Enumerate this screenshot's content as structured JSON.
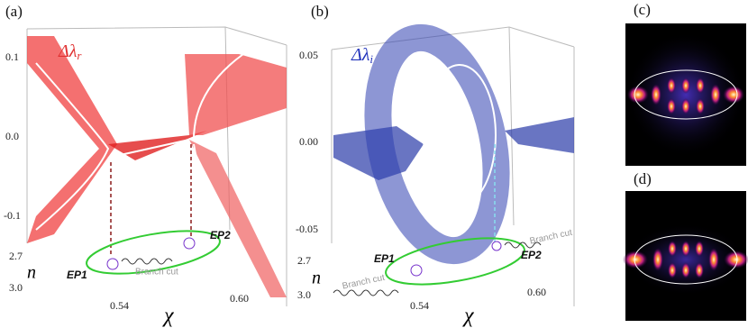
{
  "panels": [
    {
      "label": "(a)",
      "quantity": {
        "main": "Δλ",
        "sub": "r"
      },
      "yticks": [
        "0.1",
        "0.0",
        "-0.1"
      ],
      "n_label": "n",
      "n_ticks": [
        "2.7",
        "3.0"
      ],
      "chi_label": "χ",
      "chi_ticks": [
        "0.54",
        "0.60"
      ],
      "ep1": "EP1",
      "ep2": "EP2",
      "branch_cuts": [
        "Branch cut"
      ]
    },
    {
      "label": "(b)",
      "quantity": {
        "main": "Δλ",
        "sub": "i"
      },
      "yticks": [
        "0.05",
        "0.00",
        "-0.05"
      ],
      "n_label": "n",
      "n_ticks": [
        "2.7",
        "3.0"
      ],
      "chi_label": "χ",
      "chi_ticks": [
        "0.54",
        "0.60"
      ],
      "ep1": "EP1",
      "ep2": "EP2",
      "branch_cuts": [
        "Branch cut",
        "Branch cut"
      ]
    },
    {
      "label": "(c)"
    },
    {
      "label": "(d)"
    }
  ]
}
